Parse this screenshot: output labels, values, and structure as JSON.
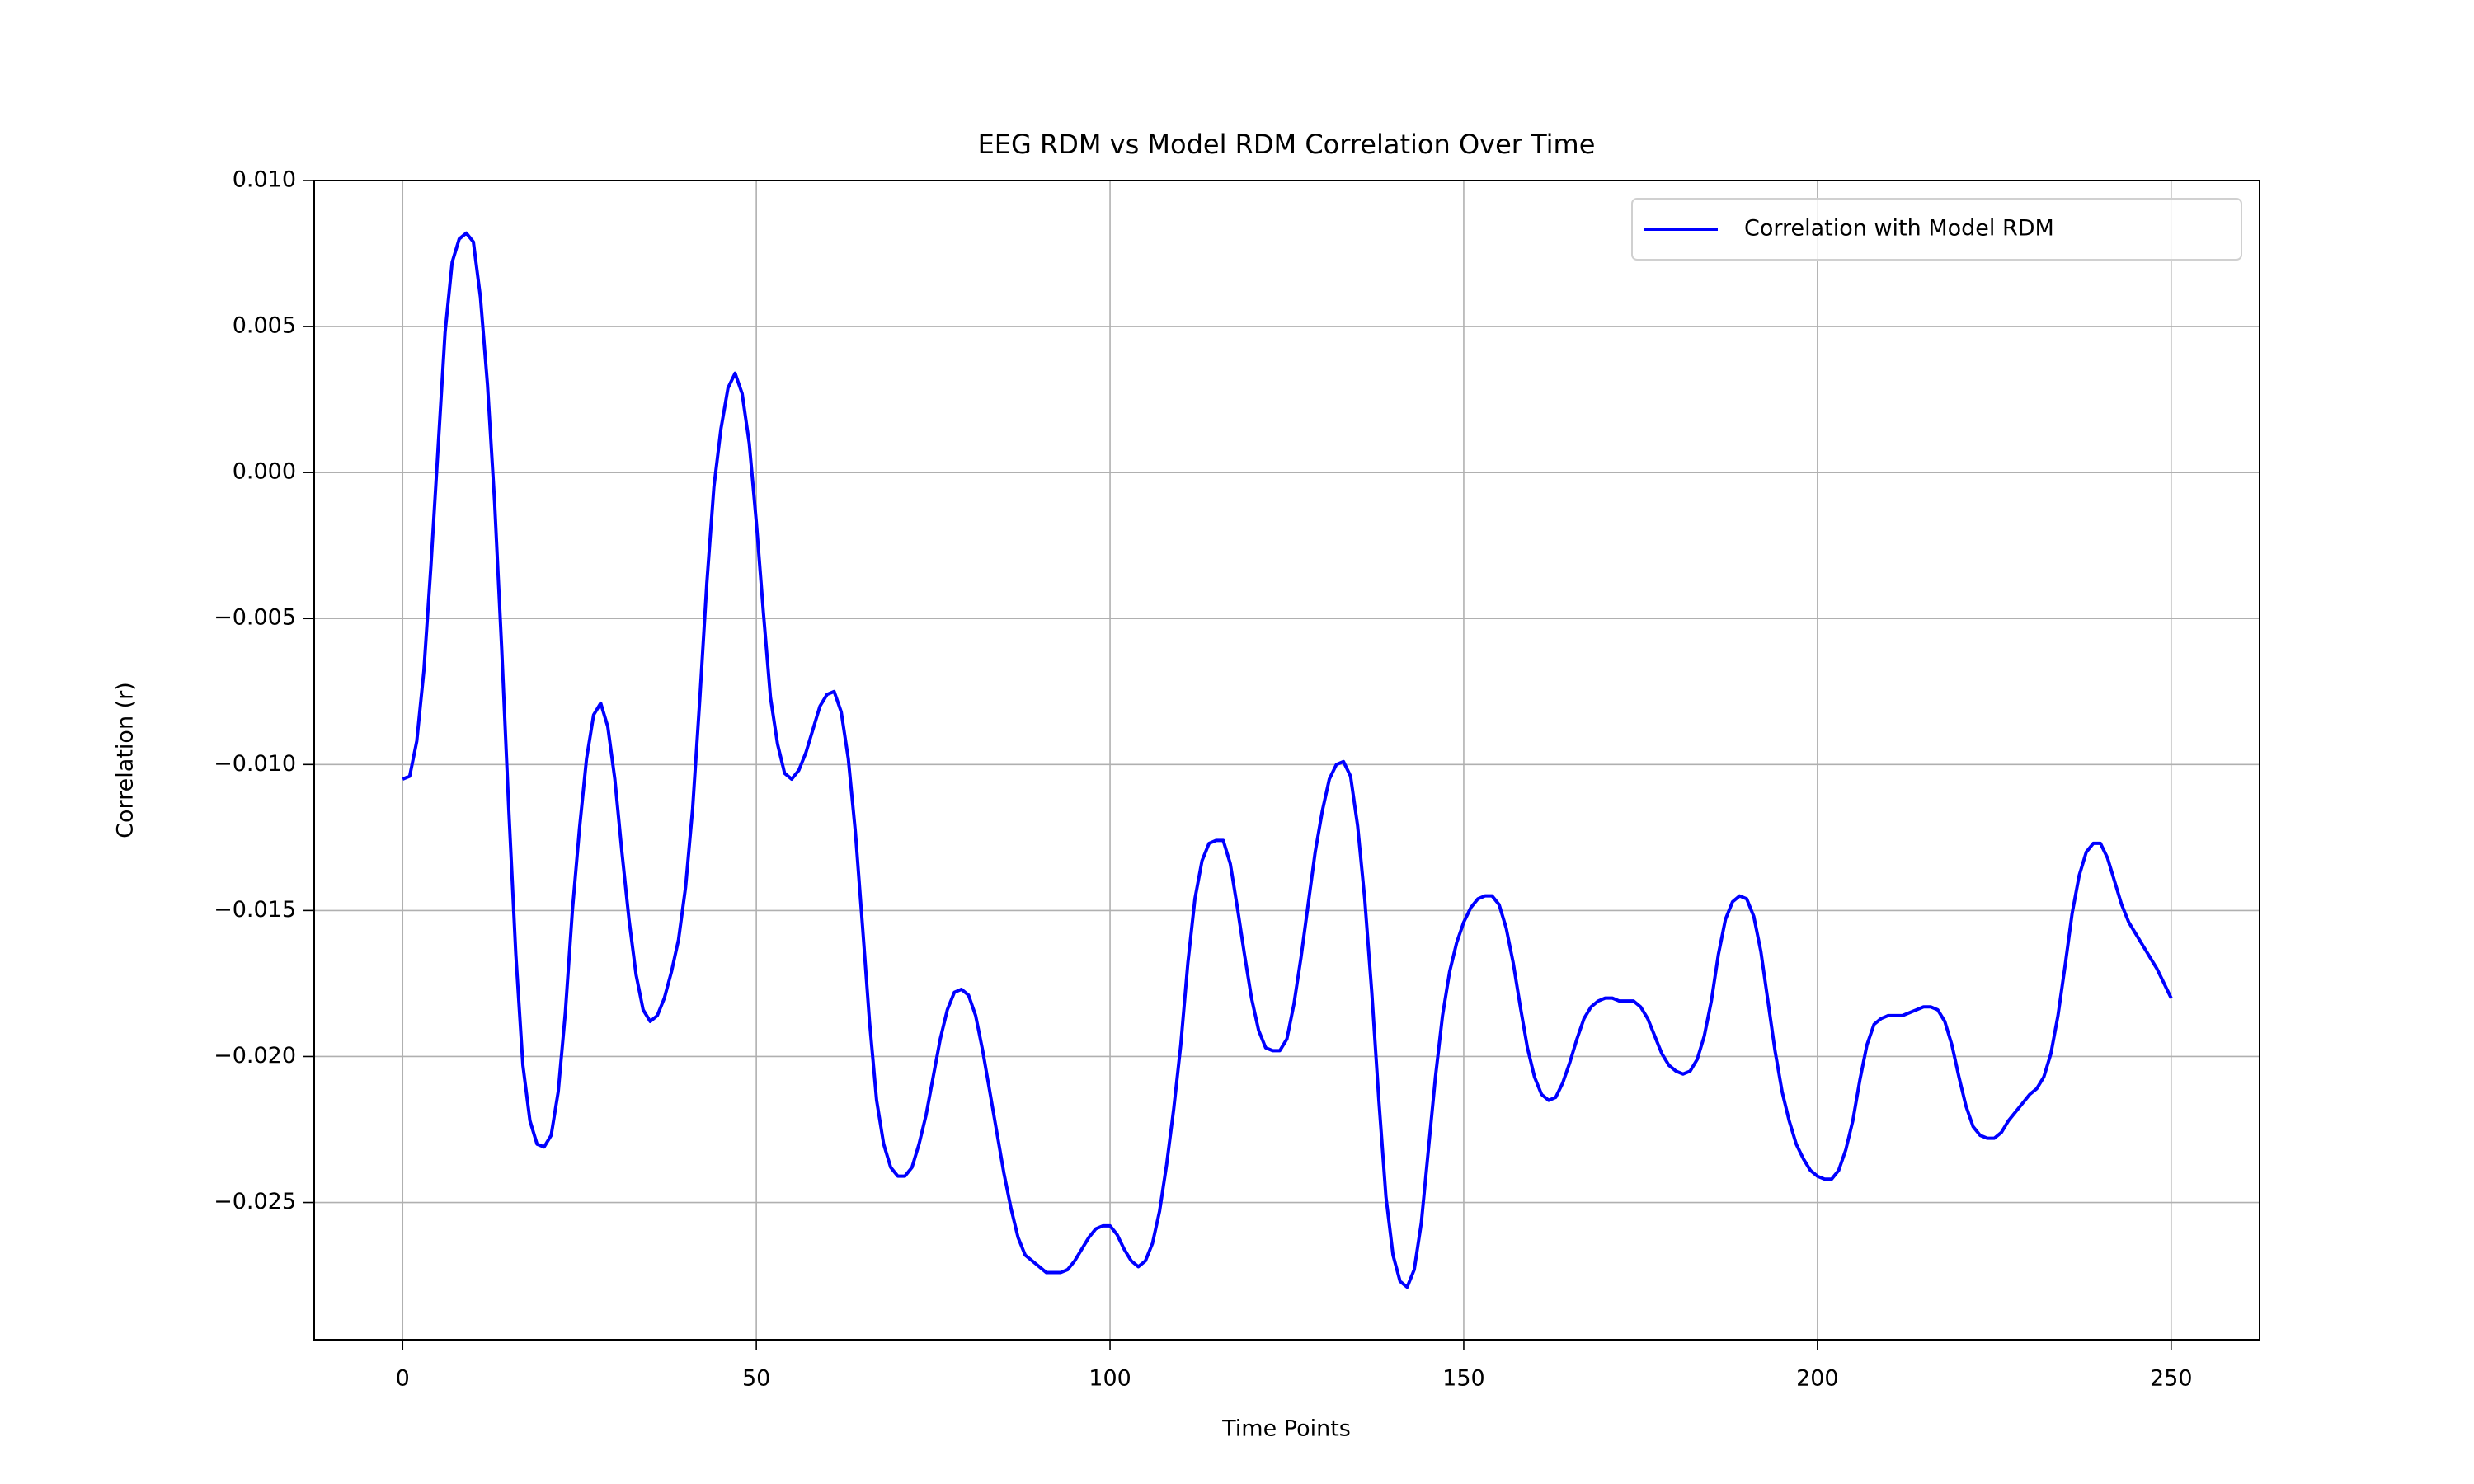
{
  "chart_data": {
    "type": "line",
    "title": "EEG RDM vs Model RDM Correlation Over Time",
    "x_label": "Time Points",
    "y_label": "Correlation (r)",
    "x": [
      0,
      1,
      2,
      3,
      4,
      5,
      6,
      7,
      8,
      9,
      10,
      11,
      12,
      13,
      14,
      15,
      16,
      17,
      18,
      19,
      20,
      21,
      22,
      23,
      24,
      25,
      26,
      27,
      28,
      29,
      30,
      31,
      32,
      33,
      34,
      35,
      36,
      37,
      38,
      39,
      40,
      41,
      42,
      43,
      44,
      45,
      46,
      47,
      48,
      49,
      50,
      51,
      52,
      53,
      54,
      55,
      56,
      57,
      58,
      59,
      60,
      61,
      62,
      63,
      64,
      65,
      66,
      67,
      68,
      69,
      70,
      71,
      72,
      73,
      74,
      75,
      76,
      77,
      78,
      79,
      80,
      81,
      82,
      83,
      84,
      85,
      86,
      87,
      88,
      89,
      90,
      91,
      92,
      93,
      94,
      95,
      96,
      97,
      98,
      99,
      100,
      101,
      102,
      103,
      104,
      105,
      106,
      107,
      108,
      109,
      110,
      111,
      112,
      113,
      114,
      115,
      116,
      117,
      118,
      119,
      120,
      121,
      122,
      123,
      124,
      125,
      126,
      127,
      128,
      129,
      130,
      131,
      132,
      133,
      134,
      135,
      136,
      137,
      138,
      139,
      140,
      141,
      142,
      143,
      144,
      145,
      146,
      147,
      148,
      149,
      150,
      151,
      152,
      153,
      154,
      155,
      156,
      157,
      158,
      159,
      160,
      161,
      162,
      163,
      164,
      165,
      166,
      167,
      168,
      169,
      170,
      171,
      172,
      173,
      174,
      175,
      176,
      177,
      178,
      179,
      180,
      181,
      182,
      183,
      184,
      185,
      186,
      187,
      188,
      189,
      190,
      191,
      192,
      193,
      194,
      195,
      196,
      197,
      198,
      199,
      200,
      201,
      202,
      203,
      204,
      205,
      206,
      207,
      208,
      209,
      210,
      211,
      212,
      213,
      214,
      215,
      216,
      217,
      218,
      219,
      220,
      221,
      222,
      223,
      224,
      225,
      226,
      227,
      228,
      229,
      230,
      231,
      232,
      233,
      234,
      235,
      236,
      237,
      238,
      239,
      240,
      241,
      242,
      243,
      244,
      245,
      246,
      247,
      248,
      249,
      250
    ],
    "series": [
      {
        "name": "Correlation with Model RDM",
        "color": "#0000ff",
        "values": [
          -0.0105,
          -0.0104,
          -0.0092,
          -0.0068,
          -0.0032,
          0.0008,
          0.0048,
          0.0072,
          0.008,
          0.0082,
          0.0079,
          0.006,
          0.003,
          -0.001,
          -0.006,
          -0.0115,
          -0.0165,
          -0.0203,
          -0.0222,
          -0.023,
          -0.0231,
          -0.0227,
          -0.0212,
          -0.0185,
          -0.015,
          -0.0122,
          -0.0098,
          -0.0083,
          -0.0079,
          -0.0087,
          -0.0105,
          -0.013,
          -0.0153,
          -0.0172,
          -0.0184,
          -0.0188,
          -0.0186,
          -0.018,
          -0.0171,
          -0.016,
          -0.0142,
          -0.0115,
          -0.0078,
          -0.0038,
          -0.0005,
          0.0015,
          0.0029,
          0.0034,
          0.0027,
          0.001,
          -0.0017,
          -0.0048,
          -0.0077,
          -0.0093,
          -0.0103,
          -0.0105,
          -0.0102,
          -0.0096,
          -0.0088,
          -0.008,
          -0.0076,
          -0.0075,
          -0.0082,
          -0.0098,
          -0.0123,
          -0.0155,
          -0.0188,
          -0.0215,
          -0.023,
          -0.0238,
          -0.0241,
          -0.0241,
          -0.0238,
          -0.023,
          -0.022,
          -0.0207,
          -0.0194,
          -0.0184,
          -0.0178,
          -0.0177,
          -0.0179,
          -0.0186,
          -0.0198,
          -0.0212,
          -0.0226,
          -0.024,
          -0.0252,
          -0.0262,
          -0.0268,
          -0.027,
          -0.0272,
          -0.0274,
          -0.0274,
          -0.0274,
          -0.0273,
          -0.027,
          -0.0266,
          -0.0262,
          -0.0259,
          -0.0258,
          -0.0258,
          -0.0261,
          -0.0266,
          -0.027,
          -0.0272,
          -0.027,
          -0.0264,
          -0.0253,
          -0.0237,
          -0.0218,
          -0.0196,
          -0.0168,
          -0.0146,
          -0.0133,
          -0.0127,
          -0.0126,
          -0.0126,
          -0.0134,
          -0.0149,
          -0.0165,
          -0.018,
          -0.0191,
          -0.0197,
          -0.0198,
          -0.0198,
          -0.0194,
          -0.0182,
          -0.0166,
          -0.0148,
          -0.013,
          -0.0116,
          -0.0105,
          -0.01,
          -0.0099,
          -0.0104,
          -0.0121,
          -0.0146,
          -0.0178,
          -0.0215,
          -0.0248,
          -0.0268,
          -0.0277,
          -0.0279,
          -0.0273,
          -0.0257,
          -0.0232,
          -0.0207,
          -0.0186,
          -0.0171,
          -0.0161,
          -0.0154,
          -0.0149,
          -0.0146,
          -0.0145,
          -0.0145,
          -0.0148,
          -0.0156,
          -0.0168,
          -0.0183,
          -0.0197,
          -0.0207,
          -0.0213,
          -0.0215,
          -0.0214,
          -0.0209,
          -0.0202,
          -0.0194,
          -0.0187,
          -0.0183,
          -0.0181,
          -0.018,
          -0.018,
          -0.0181,
          -0.0181,
          -0.0181,
          -0.0183,
          -0.0187,
          -0.0193,
          -0.0199,
          -0.0203,
          -0.0205,
          -0.0206,
          -0.0205,
          -0.0201,
          -0.0193,
          -0.0181,
          -0.0165,
          -0.0153,
          -0.0147,
          -0.0145,
          -0.0146,
          -0.0152,
          -0.0164,
          -0.0181,
          -0.0198,
          -0.0212,
          -0.0222,
          -0.023,
          -0.0235,
          -0.0239,
          -0.0241,
          -0.0242,
          -0.0242,
          -0.0239,
          -0.0232,
          -0.0222,
          -0.0208,
          -0.0196,
          -0.0189,
          -0.0187,
          -0.0186,
          -0.0186,
          -0.0186,
          -0.0185,
          -0.0184,
          -0.0183,
          -0.0183,
          -0.0184,
          -0.0188,
          -0.0196,
          -0.0207,
          -0.0217,
          -0.0224,
          -0.0227,
          -0.0228,
          -0.0228,
          -0.0226,
          -0.0222,
          -0.0219,
          -0.0216,
          -0.0213,
          -0.0211,
          -0.0207,
          -0.0199,
          -0.0186,
          -0.0169,
          -0.0151,
          -0.0138,
          -0.013,
          -0.0127,
          -0.0127,
          -0.0132,
          -0.014,
          -0.0148,
          -0.0154,
          -0.0158,
          -0.0162,
          -0.0166,
          -0.017,
          -0.0175,
          -0.018
        ]
      }
    ],
    "xlim": [
      -12.5,
      262.5
    ],
    "ylim": [
      -0.0297,
      0.01
    ],
    "xticks": [
      0,
      50,
      100,
      150,
      200,
      250
    ],
    "yticks": [
      {
        "value": -0.025,
        "label": "−0.025"
      },
      {
        "value": -0.02,
        "label": "−0.020"
      },
      {
        "value": -0.015,
        "label": "−0.015"
      },
      {
        "value": -0.01,
        "label": "−0.010"
      },
      {
        "value": -0.005,
        "label": "−0.005"
      },
      {
        "value": 0,
        "label": "0.000"
      },
      {
        "value": 0.005,
        "label": "0.005"
      },
      {
        "value": 0.01,
        "label": "0.010"
      }
    ],
    "grid": true,
    "legend": "upper right"
  }
}
